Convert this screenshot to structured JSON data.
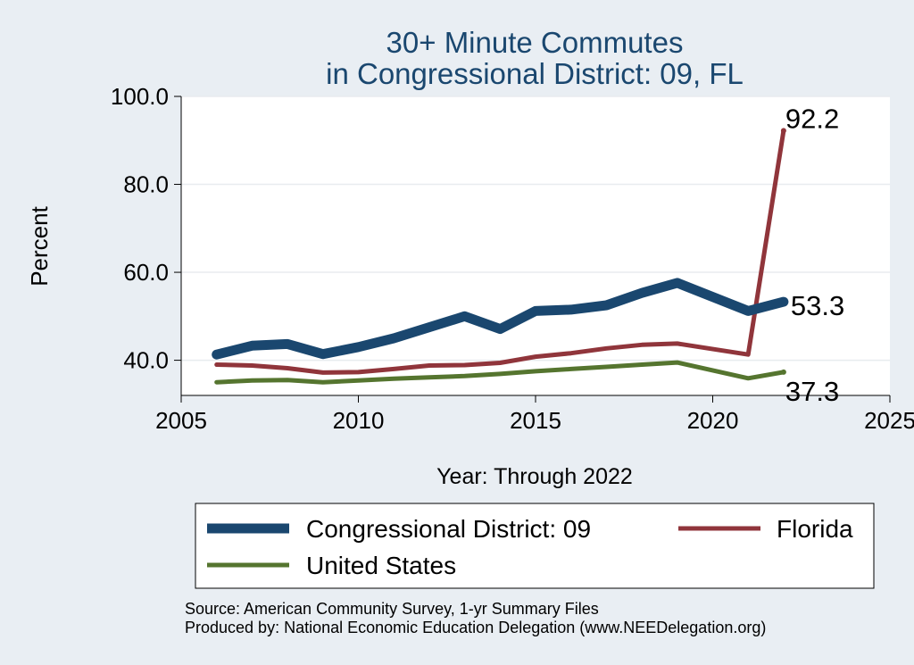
{
  "chart_data": {
    "type": "line",
    "title_lines": [
      "30+ Minute Commutes",
      "in Congressional District:  09, FL"
    ],
    "xlabel": "Year: Through 2022",
    "ylabel": "Percent",
    "xlim": [
      2005,
      2025
    ],
    "ylim": [
      32,
      100
    ],
    "xticks": [
      2005,
      2010,
      2015,
      2020,
      2025
    ],
    "yticks": [
      40,
      60,
      80,
      100
    ],
    "ytick_labels": [
      "40.0",
      "60.0",
      "80.0",
      "100.0"
    ],
    "grid": "horizontal",
    "x": [
      2006,
      2007,
      2008,
      2009,
      2010,
      2011,
      2012,
      2013,
      2014,
      2015,
      2016,
      2017,
      2018,
      2019,
      2020,
      2021,
      2022
    ],
    "series": [
      {
        "name": "Congressional District:  09",
        "color": "#1a476f",
        "width": "thick",
        "values": [
          41.3,
          43.3,
          43.7,
          41.4,
          43.0,
          45.0,
          47.5,
          50.0,
          47.1,
          51.2,
          51.5,
          52.5,
          55.3,
          57.6,
          null,
          51.2,
          53.3
        ],
        "end_label": "53.3"
      },
      {
        "name": "Florida",
        "color": "#90353b",
        "width": "medium",
        "values": [
          39.0,
          38.8,
          38.2,
          37.2,
          37.3,
          38.0,
          38.8,
          38.9,
          39.4,
          40.8,
          41.6,
          42.7,
          43.5,
          43.8,
          null,
          41.3,
          92.2
        ],
        "end_label": "92.2"
      },
      {
        "name": "United States",
        "color": "#55752f",
        "width": "medium",
        "values": [
          35.0,
          35.4,
          35.5,
          35.0,
          35.4,
          35.8,
          36.1,
          36.4,
          36.9,
          37.5,
          38.0,
          38.5,
          39.0,
          39.5,
          null,
          35.9,
          37.3
        ],
        "end_label": "37.3"
      }
    ],
    "legend": {
      "placement": "bottom",
      "entries": [
        {
          "label": "Congressional District:  09",
          "series": 0
        },
        {
          "label": "Florida",
          "series": 1
        },
        {
          "label": "United States",
          "series": 2
        }
      ]
    },
    "source_lines": [
      "Source: American Community Survey, 1-yr Summary Files",
      "Produced by: National Economic Education Delegation (www.NEEDelegation.org)"
    ]
  }
}
